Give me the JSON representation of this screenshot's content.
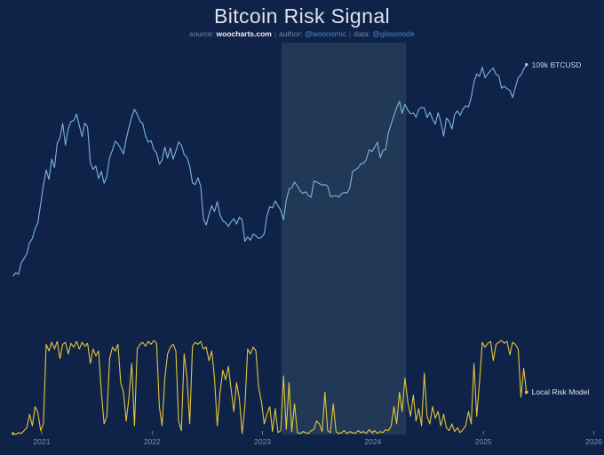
{
  "header": {
    "title": "Bitcoin Risk Signal",
    "source_label": "source:",
    "source_value": "woocharts.com",
    "sep1": "|",
    "author_label": "author:",
    "author_value": "@woonomic",
    "sep2": "|",
    "data_label": "data:",
    "data_value": "@glassnode"
  },
  "labels": {
    "price_end": "109k BTCUSD",
    "risk_end": "Local Risk Model"
  },
  "colors": {
    "background": "#0f2348",
    "highlight_band": "#213857",
    "price_line": "#7cb4e0",
    "risk_line": "#e4c43c",
    "axis_label": "#8090a6",
    "tick": "#8694aa",
    "title": "#dde2ea",
    "subtitle": "#76849c",
    "link": "#4b80d1"
  },
  "chart_data": {
    "type": "line",
    "title": "Bitcoin Risk Signal",
    "grid": "off",
    "legend": "end-of-line labels",
    "x_axis": {
      "ticks": [
        2021,
        2022,
        2023,
        2024,
        2025,
        2026
      ],
      "range_years": [
        2020.72,
        2026.1
      ]
    },
    "highlight_band": {
      "from_year": 2023.17,
      "to_year": 2024.3,
      "color": "#213857"
    },
    "price_axis": {
      "scale": "log",
      "units": "USD thousands",
      "approx_range_k": [
        9,
        120
      ]
    },
    "risk_axis": {
      "scale": "linear",
      "range": [
        0,
        1
      ]
    },
    "series": [
      {
        "name": "BTCUSD price",
        "end_label": "109k BTCUSD",
        "color": "#7cb4e0",
        "axis": "price_log_usd_k",
        "units": "thousand USD",
        "x_start": 2020.74,
        "x_step": 0.025,
        "values": [
          10.9,
          11.3,
          11.1,
          12.6,
          13.2,
          13.9,
          15.7,
          16.4,
          18.2,
          19.4,
          23.9,
          29.3,
          34.6,
          31.2,
          38.9,
          35.5,
          46.2,
          49.1,
          57.4,
          45.3,
          54.1,
          58.6,
          59.2,
          63.5,
          56.1,
          49.8,
          57.6,
          55.2,
          37.4,
          34.8,
          36.1,
          31.5,
          34.0,
          29.9,
          32.3,
          39.6,
          42.9,
          47.3,
          45.9,
          43.7,
          41.2,
          48.4,
          55.0,
          61.6,
          66.9,
          63.4,
          58.8,
          57.3,
          50.2,
          46.8,
          47.6,
          43.2,
          41.6,
          36.8,
          38.6,
          44.4,
          39.3,
          44.0,
          38.9,
          42.5,
          46.9,
          45.4,
          41.0,
          39.6,
          36.1,
          30.0,
          29.5,
          31.8,
          28.9,
          20.2,
          19.0,
          21.3,
          23.4,
          22.0,
          24.5,
          21.2,
          19.9,
          19.5,
          18.7,
          19.7,
          20.3,
          19.2,
          20.7,
          20.1,
          15.9,
          16.7,
          16.1,
          17.2,
          16.9,
          16.4,
          16.6,
          17.3,
          21.0,
          23.2,
          22.9,
          24.7,
          23.4,
          22.3,
          20.1,
          24.8,
          28.1,
          28.5,
          30.3,
          29.1,
          27.5,
          26.8,
          27.3,
          26.2,
          25.7,
          30.7,
          30.3,
          29.8,
          29.3,
          29.5,
          29.0,
          25.9,
          26.0,
          26.2,
          25.7,
          26.7,
          27.1,
          26.9,
          28.4,
          34.1,
          34.6,
          35.3,
          37.0,
          37.2,
          38.8,
          43.1,
          42.2,
          44.3,
          46.8,
          39.5,
          42.7,
          43.2,
          51.9,
          57.1,
          62.5,
          68.2,
          73.0,
          64.1,
          70.7,
          66.3,
          63.8,
          64.4,
          61.4,
          67.0,
          68.3,
          67.9,
          61.1,
          64.9,
          60.2,
          56.9,
          64.5,
          58.3,
          50.0,
          60.8,
          58.8,
          54.0,
          63.3,
          65.8,
          62.7,
          67.1,
          69.5,
          68.6,
          76.2,
          89.8,
          98.4,
          95.7,
          106.0,
          94.3,
          98.6,
          102.0,
          104.9,
          97.8,
          96.3,
          84.2,
          86.0,
          83.8,
          82.4,
          76.2,
          84.8,
          94.5,
          97.0,
          103.6,
          108.9
        ]
      },
      {
        "name": "Local Risk Model",
        "end_label": "Local Risk Model",
        "color": "#e4c43c",
        "axis": "risk_0_1",
        "units": "risk (0-1)",
        "x_start": 2020.74,
        "x_step": 0.025,
        "values": [
          0.02,
          0.01,
          0.03,
          0.02,
          0.05,
          0.08,
          0.22,
          0.1,
          0.3,
          0.24,
          0.05,
          0.12,
          0.95,
          0.88,
          0.97,
          0.9,
          0.98,
          0.8,
          0.95,
          0.97,
          0.85,
          0.96,
          0.92,
          0.98,
          0.9,
          0.97,
          0.93,
          0.96,
          0.75,
          0.9,
          0.83,
          0.88,
          0.45,
          0.12,
          0.2,
          0.8,
          0.92,
          0.88,
          0.95,
          0.55,
          0.45,
          0.15,
          0.4,
          0.75,
          0.1,
          0.9,
          0.95,
          0.97,
          0.93,
          0.98,
          0.95,
          0.99,
          0.96,
          0.3,
          0.1,
          0.6,
          0.85,
          0.92,
          0.95,
          0.88,
          0.15,
          0.05,
          0.85,
          0.6,
          0.12,
          0.93,
          0.97,
          0.95,
          0.98,
          0.9,
          0.92,
          0.78,
          0.88,
          0.6,
          0.1,
          0.45,
          0.68,
          0.58,
          0.72,
          0.48,
          0.25,
          0.55,
          0.38,
          0.02,
          0.3,
          0.9,
          0.85,
          0.92,
          0.88,
          0.5,
          0.35,
          0.12,
          0.22,
          0.3,
          0.04,
          0.28,
          0.03,
          0.05,
          0.62,
          0.06,
          0.55,
          0.04,
          0.33,
          0.03,
          0.02,
          0.04,
          0.03,
          0.02,
          0.05,
          0.06,
          0.15,
          0.12,
          0.04,
          0.45,
          0.05,
          0.03,
          0.33,
          0.04,
          0.02,
          0.03,
          0.05,
          0.02,
          0.04,
          0.03,
          0.02,
          0.05,
          0.03,
          0.04,
          0.02,
          0.06,
          0.03,
          0.05,
          0.02,
          0.04,
          0.03,
          0.06,
          0.05,
          0.1,
          0.3,
          0.12,
          0.45,
          0.25,
          0.6,
          0.35,
          0.2,
          0.42,
          0.15,
          0.28,
          0.1,
          0.65,
          0.2,
          0.12,
          0.3,
          0.18,
          0.25,
          0.1,
          0.22,
          0.08,
          0.05,
          0.12,
          0.04,
          0.08,
          0.03,
          0.06,
          0.1,
          0.25,
          0.12,
          0.75,
          0.2,
          0.55,
          0.97,
          0.92,
          0.96,
          0.98,
          0.78,
          0.95,
          0.97,
          0.99,
          0.96,
          0.98,
          0.84,
          0.97,
          0.95,
          0.9,
          0.4,
          0.7,
          0.45
        ]
      }
    ]
  }
}
